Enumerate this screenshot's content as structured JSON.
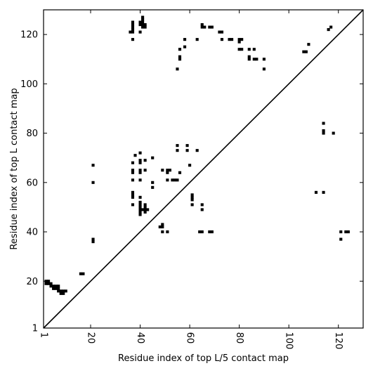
{
  "chart_data": {
    "type": "scatter",
    "marker": "square",
    "title": "",
    "xlabel": "Residue index of top L/5 contact map",
    "ylabel": "Residue index of top L contact map",
    "xlim": [
      1,
      130
    ],
    "ylim": [
      1,
      130
    ],
    "xticks": [
      1,
      20,
      40,
      60,
      80,
      100,
      120
    ],
    "yticks": [
      1,
      20,
      40,
      60,
      80,
      100,
      120
    ],
    "x_tick_labels_rotated": true,
    "grid": false,
    "diagonal": true,
    "colors": {
      "marker": "#000000",
      "axes": "#000000",
      "background": "#ffffff"
    },
    "points": [
      [
        2,
        20
      ],
      [
        3,
        20
      ],
      [
        2,
        19
      ],
      [
        3,
        19
      ],
      [
        4,
        19
      ],
      [
        4,
        18
      ],
      [
        5,
        18
      ],
      [
        6,
        18
      ],
      [
        7,
        18
      ],
      [
        5,
        17
      ],
      [
        6,
        17
      ],
      [
        7,
        17
      ],
      [
        7,
        16
      ],
      [
        8,
        16
      ],
      [
        9,
        16
      ],
      [
        10,
        16
      ],
      [
        8,
        15
      ],
      [
        9,
        15
      ],
      [
        16,
        23
      ],
      [
        17,
        23
      ],
      [
        21,
        67
      ],
      [
        21,
        60
      ],
      [
        21,
        37
      ],
      [
        21,
        36
      ],
      [
        36,
        121
      ],
      [
        37,
        121
      ],
      [
        37,
        122
      ],
      [
        37,
        123
      ],
      [
        37,
        124
      ],
      [
        37,
        125
      ],
      [
        37,
        118
      ],
      [
        37,
        68
      ],
      [
        37,
        65
      ],
      [
        37,
        64
      ],
      [
        37,
        61
      ],
      [
        37,
        56
      ],
      [
        37,
        55
      ],
      [
        37,
        54
      ],
      [
        37,
        51
      ],
      [
        38,
        71
      ],
      [
        40,
        125
      ],
      [
        40,
        124
      ],
      [
        40,
        121
      ],
      [
        40,
        72
      ],
      [
        40,
        69
      ],
      [
        40,
        68
      ],
      [
        40,
        65
      ],
      [
        40,
        64
      ],
      [
        40,
        61
      ],
      [
        40,
        54
      ],
      [
        40,
        52
      ],
      [
        40,
        51
      ],
      [
        40,
        50
      ],
      [
        40,
        49
      ],
      [
        40,
        48
      ],
      [
        40,
        47
      ],
      [
        41,
        127
      ],
      [
        41,
        126
      ],
      [
        41,
        125
      ],
      [
        41,
        124
      ],
      [
        41,
        123
      ],
      [
        42,
        124
      ],
      [
        42,
        123
      ],
      [
        41,
        49
      ],
      [
        42,
        49
      ],
      [
        42,
        51
      ],
      [
        42,
        50
      ],
      [
        42,
        48
      ],
      [
        43,
        49
      ],
      [
        42,
        69
      ],
      [
        42,
        65
      ],
      [
        45,
        70
      ],
      [
        45,
        60
      ],
      [
        45,
        58
      ],
      [
        48,
        42
      ],
      [
        49,
        43
      ],
      [
        49,
        42
      ],
      [
        49,
        40
      ],
      [
        49,
        65
      ],
      [
        51,
        65
      ],
      [
        51,
        64
      ],
      [
        52,
        65
      ],
      [
        51,
        61
      ],
      [
        51,
        40
      ],
      [
        53,
        61
      ],
      [
        54,
        61
      ],
      [
        55,
        61
      ],
      [
        55,
        75
      ],
      [
        55,
        73
      ],
      [
        55,
        106
      ],
      [
        56,
        64
      ],
      [
        56,
        111
      ],
      [
        56,
        110
      ],
      [
        56,
        114
      ],
      [
        58,
        118
      ],
      [
        58,
        115
      ],
      [
        59,
        75
      ],
      [
        59,
        73
      ],
      [
        60,
        67
      ],
      [
        61,
        55
      ],
      [
        61,
        54
      ],
      [
        61,
        53
      ],
      [
        61,
        51
      ],
      [
        63,
        118
      ],
      [
        63,
        73
      ],
      [
        64,
        40
      ],
      [
        65,
        40
      ],
      [
        65,
        124
      ],
      [
        65,
        123
      ],
      [
        66,
        123
      ],
      [
        65,
        51
      ],
      [
        65,
        49
      ],
      [
        68,
        123
      ],
      [
        69,
        123
      ],
      [
        68,
        40
      ],
      [
        69,
        40
      ],
      [
        72,
        121
      ],
      [
        73,
        121
      ],
      [
        73,
        118
      ],
      [
        76,
        118
      ],
      [
        77,
        118
      ],
      [
        80,
        118
      ],
      [
        81,
        118
      ],
      [
        80,
        117
      ],
      [
        80,
        114
      ],
      [
        81,
        114
      ],
      [
        84,
        114
      ],
      [
        84,
        111
      ],
      [
        84,
        110
      ],
      [
        86,
        114
      ],
      [
        86,
        110
      ],
      [
        87,
        110
      ],
      [
        90,
        110
      ],
      [
        90,
        106
      ],
      [
        106,
        113
      ],
      [
        107,
        113
      ],
      [
        108,
        116
      ],
      [
        111,
        56
      ],
      [
        114,
        84
      ],
      [
        114,
        81
      ],
      [
        114,
        80
      ],
      [
        114,
        56
      ],
      [
        116,
        122
      ],
      [
        117,
        123
      ],
      [
        118,
        80
      ],
      [
        121,
        40
      ],
      [
        121,
        37
      ],
      [
        123,
        40
      ],
      [
        124,
        40
      ]
    ]
  }
}
